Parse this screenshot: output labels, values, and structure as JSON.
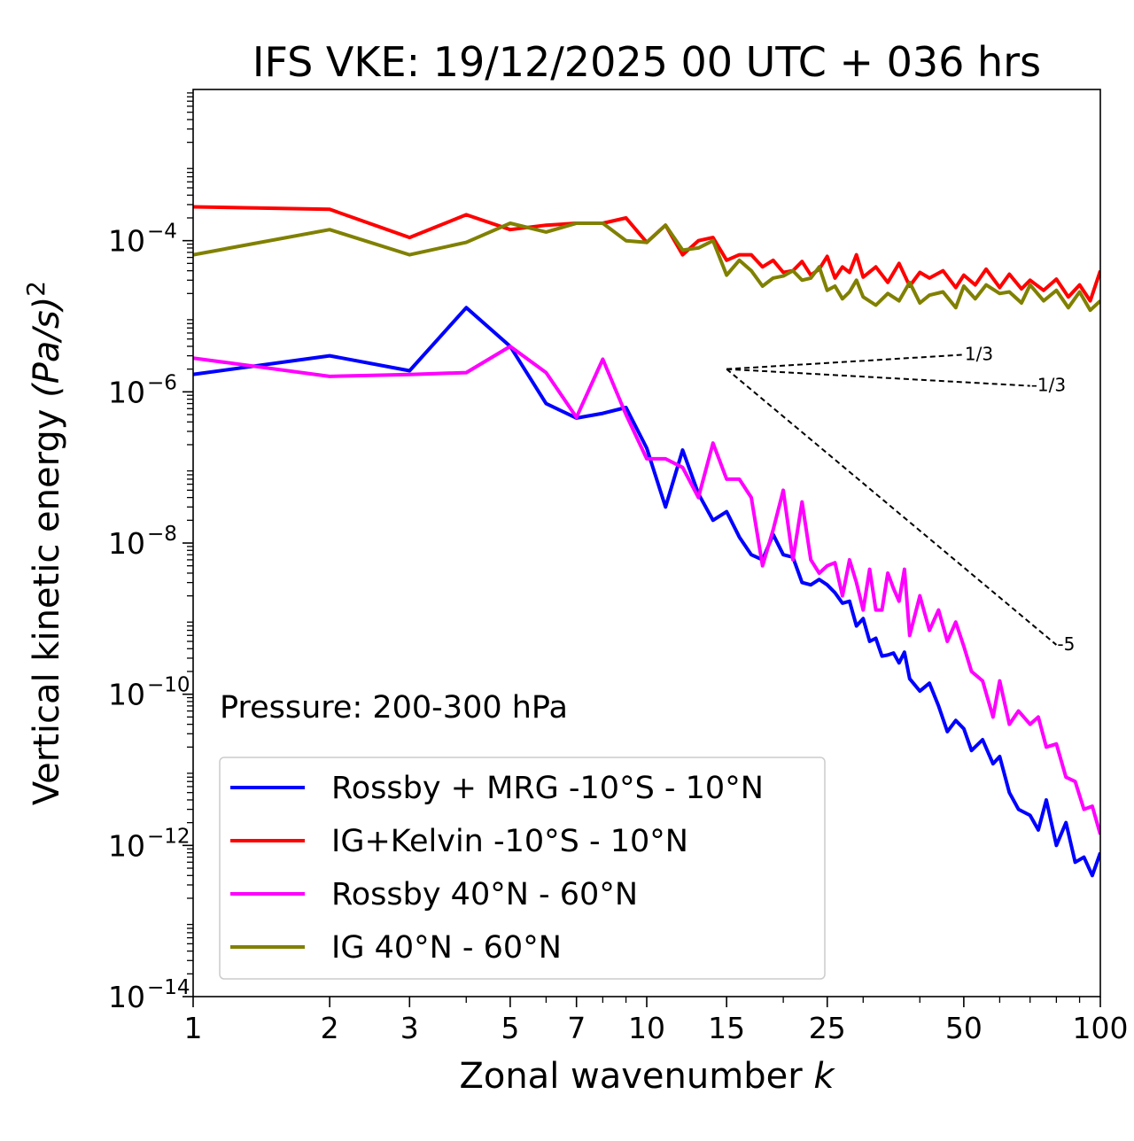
{
  "chart_data": {
    "type": "line",
    "title": "IFS VKE: 19/12/2025 00 UTC + 036 hrs",
    "xlabel": "Zonal wavenumber ",
    "xlabel_var": "k",
    "ylabel": "Vertical kinetic energy ",
    "ylabel_unit": "(Pa/s)",
    "ylabel_exp": "2",
    "xscale": "log",
    "yscale": "log",
    "xlim": [
      1,
      100
    ],
    "ylim": [
      1e-14,
      0.01
    ],
    "x_ticks": [
      1,
      2,
      3,
      5,
      7,
      10,
      15,
      25,
      50,
      100
    ],
    "x_tick_labels": [
      "1",
      "2",
      "3",
      "5",
      "7",
      "10",
      "15",
      "25",
      "50",
      "100"
    ],
    "y_ticks": [
      1e-14,
      1e-12,
      1e-10,
      1e-08,
      1e-06,
      0.0001
    ],
    "y_tick_base": "10",
    "y_tick_exponents": [
      "−14",
      "−12",
      "−10",
      "−8",
      "−6",
      "−4"
    ],
    "annotation": "Pressure: 200-300 hPa",
    "legend_position": "lower-left",
    "series": [
      {
        "name": "Rossby + MRG -10°S - 10°N",
        "color": "#0000ff",
        "points": [
          [
            1,
            1.7e-06
          ],
          [
            2,
            3e-06
          ],
          [
            3,
            1.9e-06
          ],
          [
            4,
            1.3e-05
          ],
          [
            5,
            4e-06
          ],
          [
            6,
            7e-07
          ],
          [
            7,
            4.5e-07
          ],
          [
            8,
            5.2e-07
          ],
          [
            9,
            6.2e-07
          ],
          [
            10,
            1.8e-07
          ],
          [
            11,
            3e-08
          ],
          [
            12,
            1.7e-07
          ],
          [
            13,
            4.5e-08
          ],
          [
            14,
            2e-08
          ],
          [
            15,
            2.6e-08
          ],
          [
            16,
            1.2e-08
          ],
          [
            17,
            7e-09
          ],
          [
            18,
            6e-09
          ],
          [
            19,
            1.3e-08
          ],
          [
            20,
            7e-09
          ],
          [
            21,
            6.5e-09
          ],
          [
            22,
            3e-09
          ],
          [
            23,
            2.8e-09
          ],
          [
            24,
            3.3e-09
          ],
          [
            25,
            2.8e-09
          ],
          [
            26,
            2.2e-09
          ],
          [
            27,
            1.6e-09
          ],
          [
            28,
            1.7e-09
          ],
          [
            29,
            8e-10
          ],
          [
            30,
            1e-09
          ],
          [
            31,
            5e-10
          ],
          [
            32,
            5.5e-10
          ],
          [
            33,
            3.2e-10
          ],
          [
            34,
            3.3e-10
          ],
          [
            35,
            3.5e-10
          ],
          [
            36,
            2.6e-10
          ],
          [
            37,
            3.6e-10
          ],
          [
            38,
            1.6e-10
          ],
          [
            40,
            1.1e-10
          ],
          [
            42,
            1.4e-10
          ],
          [
            44,
            7e-11
          ],
          [
            46,
            3.2e-11
          ],
          [
            48,
            4.5e-11
          ],
          [
            50,
            3.5e-11
          ],
          [
            52,
            1.8e-11
          ],
          [
            55,
            2.5e-11
          ],
          [
            58,
            1.2e-11
          ],
          [
            60,
            1.5e-11
          ],
          [
            63,
            5e-12
          ],
          [
            66,
            3e-12
          ],
          [
            70,
            2.5e-12
          ],
          [
            73,
            1.6e-12
          ],
          [
            76,
            4e-12
          ],
          [
            80,
            1e-12
          ],
          [
            84,
            2e-12
          ],
          [
            88,
            6e-13
          ],
          [
            92,
            7e-13
          ],
          [
            96,
            4e-13
          ],
          [
            100,
            8e-13
          ]
        ]
      },
      {
        "name": "IG+Kelvin -10°S - 10°N",
        "color": "#ff0000",
        "points": [
          [
            1,
            0.00028
          ],
          [
            2,
            0.00026
          ],
          [
            3,
            0.00011
          ],
          [
            4,
            0.00022
          ],
          [
            5,
            0.00014
          ],
          [
            6,
            0.00016
          ],
          [
            7,
            0.00017
          ],
          [
            8,
            0.00017
          ],
          [
            9,
            0.0002
          ],
          [
            10,
            9.5e-05
          ],
          [
            11,
            0.00016
          ],
          [
            12,
            6.5e-05
          ],
          [
            13,
            0.0001
          ],
          [
            14,
            0.00011
          ],
          [
            15,
            5.5e-05
          ],
          [
            16,
            6.5e-05
          ],
          [
            17,
            6.5e-05
          ],
          [
            18,
            4.5e-05
          ],
          [
            19,
            5.5e-05
          ],
          [
            20,
            3.8e-05
          ],
          [
            21,
            4e-05
          ],
          [
            22,
            5.3e-05
          ],
          [
            23,
            3.5e-05
          ],
          [
            24,
            4.2e-05
          ],
          [
            25,
            6.2e-05
          ],
          [
            26,
            3.2e-05
          ],
          [
            27,
            4.5e-05
          ],
          [
            28,
            3.8e-05
          ],
          [
            29,
            6.5e-05
          ],
          [
            30,
            3.3e-05
          ],
          [
            32,
            4.5e-05
          ],
          [
            34,
            2.8e-05
          ],
          [
            36,
            5e-05
          ],
          [
            38,
            2.5e-05
          ],
          [
            40,
            3.8e-05
          ],
          [
            42,
            3.2e-05
          ],
          [
            45,
            4e-05
          ],
          [
            48,
            2.4e-05
          ],
          [
            50,
            3.5e-05
          ],
          [
            53,
            2.6e-05
          ],
          [
            56,
            4.2e-05
          ],
          [
            60,
            2.4e-05
          ],
          [
            63,
            3.6e-05
          ],
          [
            67,
            2.3e-05
          ],
          [
            70,
            3e-05
          ],
          [
            75,
            2.2e-05
          ],
          [
            80,
            3.1e-05
          ],
          [
            85,
            1.8e-05
          ],
          [
            90,
            2.6e-05
          ],
          [
            95,
            1.6e-05
          ],
          [
            100,
            4e-05
          ]
        ]
      },
      {
        "name": "Rossby 40°N - 60°N",
        "color": "#ff00ff",
        "points": [
          [
            1,
            2.8e-06
          ],
          [
            2,
            1.6e-06
          ],
          [
            3,
            1.7e-06
          ],
          [
            4,
            1.8e-06
          ],
          [
            5,
            4e-06
          ],
          [
            6,
            1.8e-06
          ],
          [
            7,
            4.6e-07
          ],
          [
            8,
            2.7e-06
          ],
          [
            9,
            5e-07
          ],
          [
            10,
            1.3e-07
          ],
          [
            11,
            1.3e-07
          ],
          [
            12,
            1e-07
          ],
          [
            13,
            4e-08
          ],
          [
            14,
            2.1e-07
          ],
          [
            15,
            7e-08
          ],
          [
            16,
            7e-08
          ],
          [
            17,
            4e-08
          ],
          [
            18,
            5e-09
          ],
          [
            19,
            1.5e-08
          ],
          [
            20,
            5e-08
          ],
          [
            21,
            6e-09
          ],
          [
            22,
            3.5e-08
          ],
          [
            23,
            6e-09
          ],
          [
            24,
            4e-09
          ],
          [
            25,
            5e-09
          ],
          [
            26,
            5.5e-09
          ],
          [
            27,
            2e-09
          ],
          [
            28,
            6e-09
          ],
          [
            29,
            3e-09
          ],
          [
            30,
            1.3e-09
          ],
          [
            31,
            4.5e-09
          ],
          [
            32,
            1.3e-09
          ],
          [
            33,
            1.3e-09
          ],
          [
            34,
            4e-09
          ],
          [
            35,
            2.5e-09
          ],
          [
            36,
            1.7e-09
          ],
          [
            37,
            4.5e-09
          ],
          [
            38,
            6e-10
          ],
          [
            40,
            2e-09
          ],
          [
            42,
            7e-10
          ],
          [
            44,
            1.3e-09
          ],
          [
            46,
            5e-10
          ],
          [
            48,
            9e-10
          ],
          [
            50,
            4.3e-10
          ],
          [
            52,
            2e-10
          ],
          [
            55,
            1.5e-10
          ],
          [
            58,
            5e-11
          ],
          [
            60,
            1.5e-10
          ],
          [
            63,
            4e-11
          ],
          [
            66,
            6e-11
          ],
          [
            70,
            4e-11
          ],
          [
            73,
            5e-11
          ],
          [
            76,
            2e-11
          ],
          [
            80,
            2.2e-11
          ],
          [
            84,
            8e-12
          ],
          [
            88,
            7e-12
          ],
          [
            92,
            3e-12
          ],
          [
            96,
            3.3e-12
          ],
          [
            100,
            1.4e-12
          ]
        ]
      },
      {
        "name": "IG 40°N - 60°N",
        "color": "#808000",
        "points": [
          [
            1,
            6.5e-05
          ],
          [
            2,
            0.00014
          ],
          [
            3,
            6.5e-05
          ],
          [
            4,
            9.5e-05
          ],
          [
            5,
            0.00017
          ],
          [
            6,
            0.00013
          ],
          [
            7,
            0.00017
          ],
          [
            8,
            0.00017
          ],
          [
            9,
            0.0001
          ],
          [
            10,
            9.5e-05
          ],
          [
            11,
            0.00016
          ],
          [
            12,
            7.5e-05
          ],
          [
            13,
            8e-05
          ],
          [
            14,
            0.0001
          ],
          [
            15,
            3.5e-05
          ],
          [
            16,
            5.5e-05
          ],
          [
            17,
            4e-05
          ],
          [
            18,
            2.5e-05
          ],
          [
            19,
            3.2e-05
          ],
          [
            20,
            3.4e-05
          ],
          [
            21,
            4e-05
          ],
          [
            22,
            3e-05
          ],
          [
            23,
            3.2e-05
          ],
          [
            24,
            4.5e-05
          ],
          [
            25,
            2.2e-05
          ],
          [
            26,
            2.5e-05
          ],
          [
            27,
            1.7e-05
          ],
          [
            28,
            2.1e-05
          ],
          [
            29,
            3e-05
          ],
          [
            30,
            1.8e-05
          ],
          [
            32,
            1.4e-05
          ],
          [
            34,
            2e-05
          ],
          [
            36,
            1.6e-05
          ],
          [
            38,
            2.8e-05
          ],
          [
            40,
            1.5e-05
          ],
          [
            42,
            1.9e-05
          ],
          [
            45,
            2.1e-05
          ],
          [
            48,
            1.3e-05
          ],
          [
            50,
            2.5e-05
          ],
          [
            53,
            1.7e-05
          ],
          [
            56,
            2.6e-05
          ],
          [
            60,
            2e-05
          ],
          [
            63,
            2.1e-05
          ],
          [
            67,
            1.5e-05
          ],
          [
            70,
            2.6e-05
          ],
          [
            75,
            1.6e-05
          ],
          [
            80,
            2.2e-05
          ],
          [
            85,
            1.3e-05
          ],
          [
            90,
            2.1e-05
          ],
          [
            95,
            1.2e-05
          ],
          [
            100,
            1.6e-05
          ]
        ]
      }
    ],
    "reference_lines": [
      {
        "label": "1/3",
        "points": [
          [
            15,
            2e-06
          ],
          [
            50,
            3.1e-06
          ]
        ]
      },
      {
        "label": "-1/3",
        "points": [
          [
            15,
            2e-06
          ],
          [
            70,
            1.2e-06
          ]
        ]
      },
      {
        "label": "-5",
        "points": [
          [
            15,
            2e-06
          ],
          [
            80,
            4.5e-10
          ]
        ]
      }
    ]
  }
}
